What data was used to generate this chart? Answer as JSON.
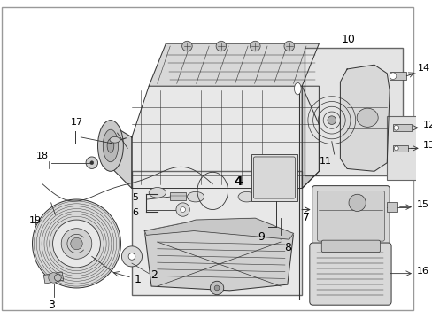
{
  "bg": "#ffffff",
  "fig_width": 4.89,
  "fig_height": 3.6,
  "dpi": 100,
  "gray": "#333333",
  "lgray": "#888888",
  "box_fill": "#e8e8e8",
  "part_fill": "#d0d0d0",
  "white": "#ffffff"
}
